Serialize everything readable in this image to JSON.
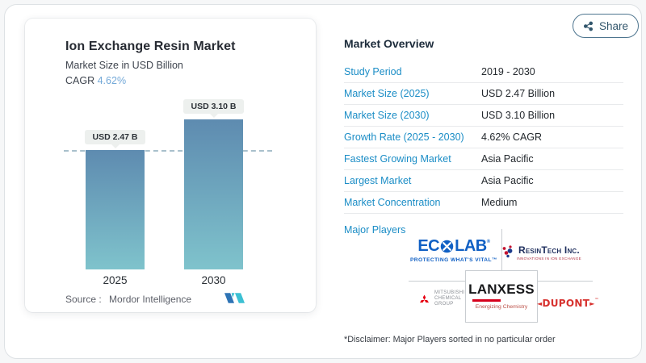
{
  "share": {
    "label": "Share"
  },
  "chart_card": {
    "title": "Ion Exchange Resin Market",
    "subtitle": "Market Size in USD Billion",
    "cagr_label": "CAGR",
    "cagr_value": "4.62%",
    "source_label": "Source :",
    "source_value": "Mordor Intelligence"
  },
  "chart_data": {
    "type": "bar",
    "title": "Ion Exchange Resin Market",
    "ylabel": "Market Size in USD Billion",
    "categories": [
      "2025",
      "2030"
    ],
    "values": [
      2.47,
      3.1
    ],
    "bar_labels": [
      "USD 2.47 B",
      "USD 3.10 B"
    ],
    "dashed_reference_value": 2.47,
    "cagr": "4.62%",
    "legend": "none",
    "grid": "off",
    "colors": {
      "bar_top": "#5e8bb0",
      "bar_bottom": "#7fc3cc",
      "dashed_line": "#a9c0cc",
      "label_pill_bg": "#edf0ee"
    }
  },
  "overview": {
    "title": "Market Overview",
    "rows": [
      {
        "label": "Study Period",
        "value": "2019 - 2030"
      },
      {
        "label": "Market Size (2025)",
        "value": "USD 2.47 Billion"
      },
      {
        "label": "Market Size (2030)",
        "value": "USD 3.10 Billion"
      },
      {
        "label": "Growth Rate (2025 - 2030)",
        "value": "4.62% CAGR"
      },
      {
        "label": "Fastest Growing Market",
        "value": "Asia Pacific"
      },
      {
        "label": "Largest Market",
        "value": "Asia Pacific"
      },
      {
        "label": "Market Concentration",
        "value": "Medium"
      }
    ],
    "major_players_label": "Major Players",
    "disclaimer": "*Disclaimer: Major Players sorted in no particular order",
    "accent_color": "#1b8dc6"
  },
  "logos": {
    "ecolab": {
      "name_pre": "EC",
      "name_post": "LAB",
      "reg": "®",
      "tagline": "PROTECTING WHAT'S VITAL™"
    },
    "resintech": {
      "name": "ResinTech Inc.",
      "tagline": "INNOVATIONS IN ION EXCHANGE"
    },
    "mitsubishi": {
      "line1": "MITSUBISHI",
      "line2": "CHEMICAL",
      "line3": "GROUP"
    },
    "lanxess": {
      "name": "LANXESS",
      "tagline": "Energizing Chemistry"
    },
    "dupont": {
      "left_mark": "◄",
      "name": "DUPONT",
      "right_mark": "►",
      "tm": "™"
    }
  }
}
